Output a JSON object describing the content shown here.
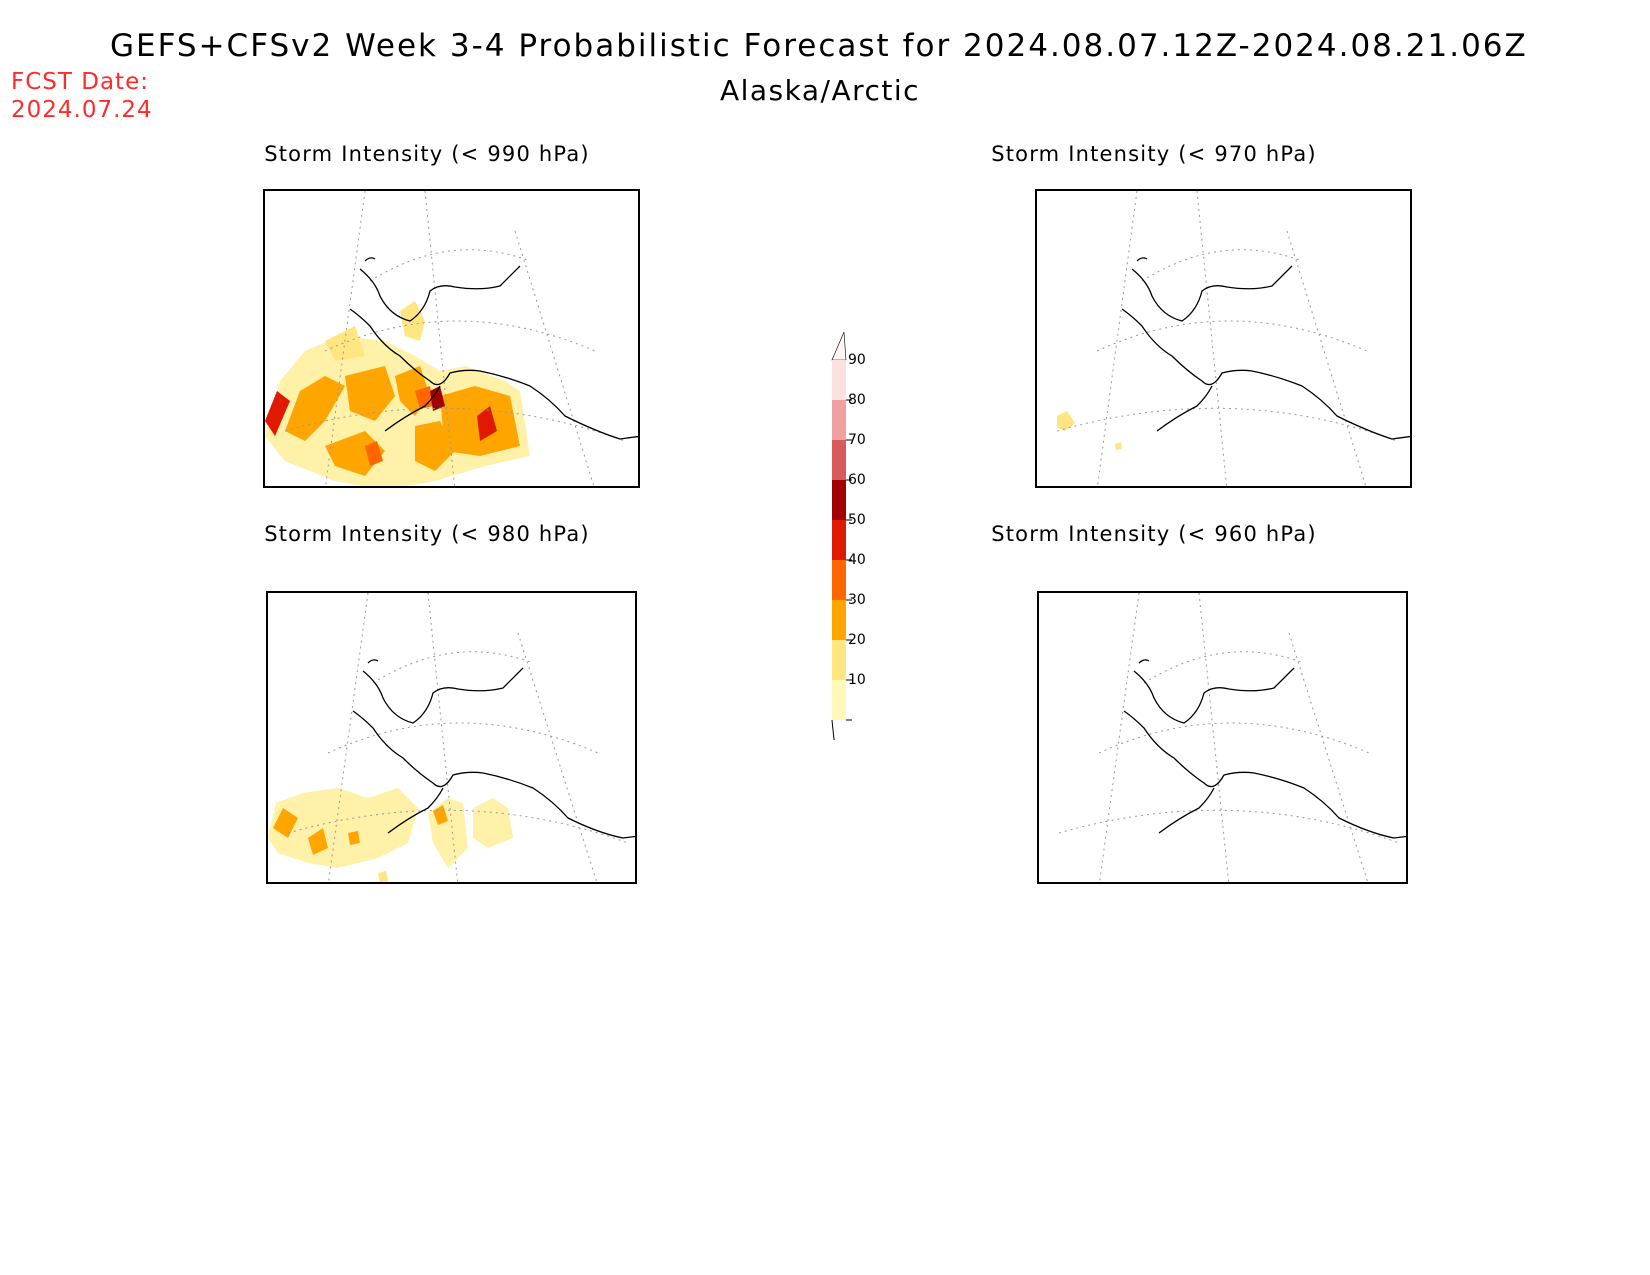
{
  "header": {
    "title": "GEFS+CFSv2 Week 3-4 Probabilistic Forecast for 2024.08.07.12Z-2024.08.21.06Z",
    "subtitle": "Alaska/Arctic",
    "fcst_label": "FCST Date:",
    "fcst_date": "2024.07.24"
  },
  "panels": [
    {
      "id": "p990",
      "title": "Storm Intensity (< 990 hPa)",
      "coverage": "widespread"
    },
    {
      "id": "p970",
      "title": "Storm Intensity (< 970 hPa)",
      "coverage": "minimal"
    },
    {
      "id": "p980",
      "title": "Storm Intensity (< 980 hPa)",
      "coverage": "moderate"
    },
    {
      "id": "p960",
      "title": "Storm Intensity (< 960 hPa)",
      "coverage": "none"
    }
  ],
  "colorbar": {
    "levels": [
      "10",
      "20",
      "30",
      "40",
      "50",
      "60",
      "70",
      "80",
      "90"
    ],
    "colors": [
      "#fff8b8",
      "#ffe680",
      "#ffa500",
      "#ff6600",
      "#e01a00",
      "#a00000",
      "#d85a5a",
      "#f0a0a0",
      "#fde0e0"
    ]
  }
}
